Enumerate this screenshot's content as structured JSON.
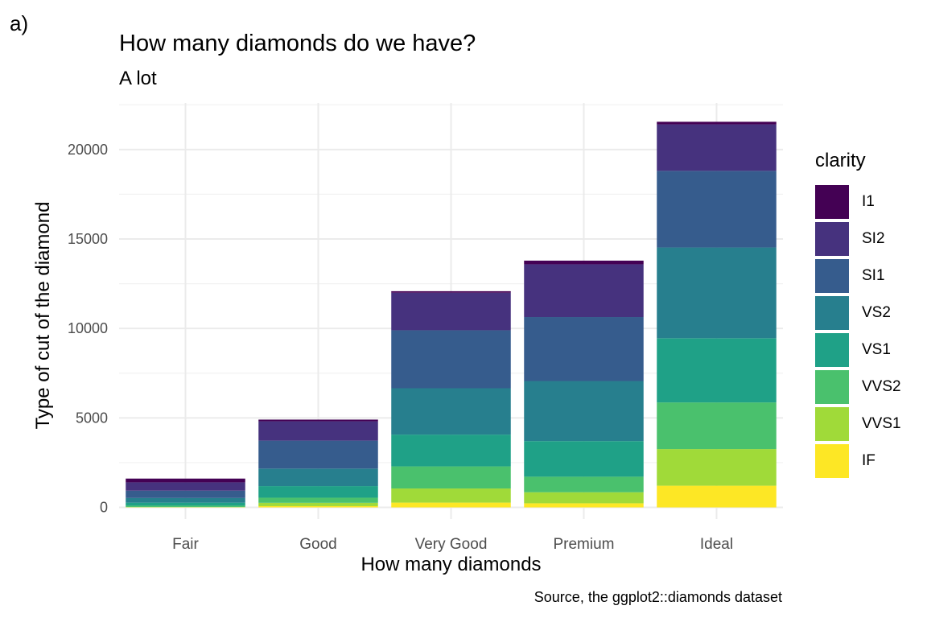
{
  "panel_tag": "a)",
  "chart_data": {
    "type": "bar",
    "stacked": true,
    "title": "How many diamonds do we have?",
    "subtitle": "A lot",
    "caption": "Source, the ggplot2::diamonds dataset",
    "xlabel": "How many diamonds",
    "ylabel": "Type of cut of the diamond",
    "categories": [
      "Fair",
      "Good",
      "Very Good",
      "Premium",
      "Ideal"
    ],
    "yticks": [
      0,
      5000,
      10000,
      15000,
      20000
    ],
    "ytick_labels": [
      "0",
      "5000",
      "10000",
      "15000",
      "20000"
    ],
    "ylim": [
      -650,
      22600
    ],
    "grid": true,
    "legend_title": "clarity",
    "legend_position": "right",
    "series": [
      {
        "name": "IF",
        "color": "#FDE725",
        "values": [
          9,
          71,
          268,
          230,
          1212
        ]
      },
      {
        "name": "VVS1",
        "color": "#A0DA39",
        "values": [
          17,
          186,
          789,
          616,
          2047
        ]
      },
      {
        "name": "VVS2",
        "color": "#4AC16D",
        "values": [
          69,
          286,
          1235,
          870,
          2606
        ]
      },
      {
        "name": "VS1",
        "color": "#1FA187",
        "values": [
          170,
          648,
          1775,
          1989,
          3589
        ]
      },
      {
        "name": "VS2",
        "color": "#277F8E",
        "values": [
          261,
          978,
          2591,
          3357,
          5071
        ]
      },
      {
        "name": "SI1",
        "color": "#365C8D",
        "values": [
          408,
          1560,
          3240,
          3575,
          4282
        ]
      },
      {
        "name": "SI2",
        "color": "#46327E",
        "values": [
          466,
          1081,
          2100,
          2949,
          2598
        ]
      },
      {
        "name": "I1",
        "color": "#440154",
        "values": [
          210,
          96,
          84,
          205,
          146
        ]
      }
    ]
  }
}
